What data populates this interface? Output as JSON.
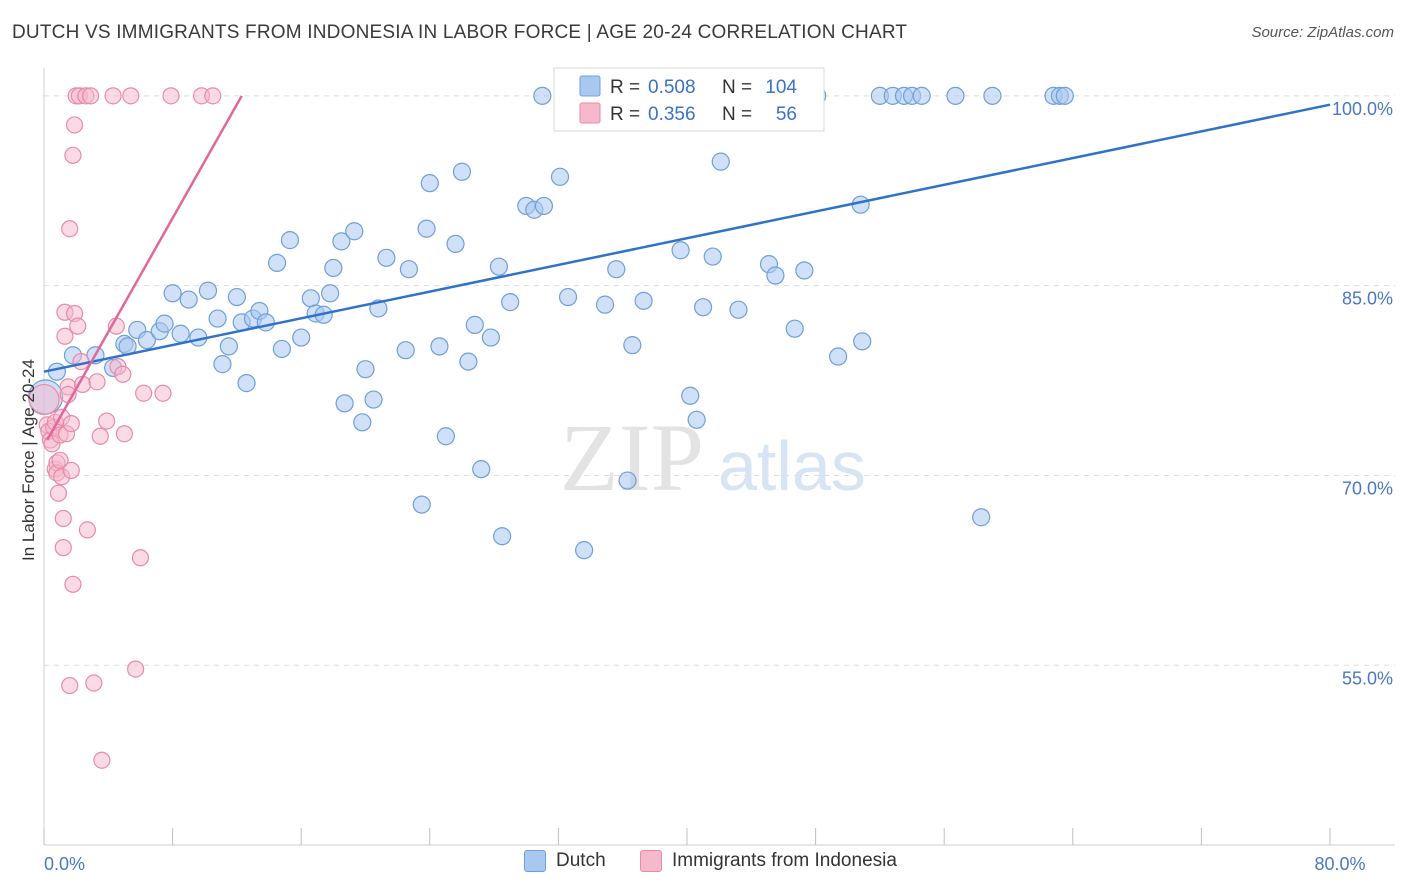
{
  "title": "DUTCH VS IMMIGRANTS FROM INDONESIA IN LABOR FORCE | AGE 20-24 CORRELATION CHART",
  "source": "Source: ZipAtlas.com",
  "watermark": {
    "zip": "ZIP",
    "atlas": "atlas"
  },
  "colors": {
    "dutch_fill": "#a9c8f0",
    "dutch_stroke": "#6f9fd8",
    "dutch_line": "#2f72cc",
    "indo_fill": "#f6b8cb",
    "indo_stroke": "#e98aa8",
    "indo_line": "#e0689a",
    "tick_text": "#4a78c0",
    "grid": "#dddddd"
  },
  "legend": {
    "rows": [
      {
        "r_label": "R =",
        "r_value": "0.508",
        "n_label": "N =",
        "n_value": "104"
      },
      {
        "r_label": "R =",
        "r_value": "0.356",
        "n_label": "N =",
        "n_value": "56"
      }
    ]
  },
  "bottom_legend": {
    "dutch": "Dutch",
    "indonesia": "Immigrants from Indonesia"
  },
  "chart_data": {
    "type": "scatter",
    "title": "DUTCH VS IMMIGRANTS FROM INDONESIA IN LABOR FORCE | AGE 20-24 CORRELATION CHART",
    "xlabel": "",
    "ylabel": "In Labor Force | Age 20-24",
    "xlim": [
      0,
      80
    ],
    "ylim": [
      40.8,
      102.2
    ],
    "x_tick_labels": [
      "0.0%",
      "80.0%"
    ],
    "y_ticks": [
      55,
      70,
      85,
      100
    ],
    "y_tick_labels": [
      "55.0%",
      "70.0%",
      "85.0%",
      "100.0%"
    ],
    "grid": true,
    "legend_position": "top-center",
    "series": [
      {
        "name": "Dutch",
        "r": 0.508,
        "n": 104,
        "trendline": [
          [
            0,
            78.2
          ],
          [
            80,
            99.3
          ]
        ],
        "points": [
          [
            0.1,
            76.2
          ],
          [
            0.8,
            78.2
          ],
          [
            1.8,
            79.5
          ],
          [
            3.2,
            79.5
          ],
          [
            4.3,
            78.5
          ],
          [
            5.0,
            80.4
          ],
          [
            5.2,
            80.2
          ],
          [
            5.8,
            81.5
          ],
          [
            6.4,
            80.7
          ],
          [
            7.2,
            81.4
          ],
          [
            7.5,
            82.0
          ],
          [
            8.0,
            84.4
          ],
          [
            8.5,
            81.2
          ],
          [
            9.0,
            83.9
          ],
          [
            9.6,
            80.9
          ],
          [
            10.2,
            84.6
          ],
          [
            10.8,
            82.4
          ],
          [
            11.1,
            78.8
          ],
          [
            11.5,
            80.2
          ],
          [
            12.0,
            84.1
          ],
          [
            12.3,
            82.1
          ],
          [
            12.6,
            77.3
          ],
          [
            13.0,
            82.4
          ],
          [
            13.4,
            83.0
          ],
          [
            13.8,
            82.1
          ],
          [
            14.5,
            86.8
          ],
          [
            14.8,
            80.0
          ],
          [
            15.3,
            88.6
          ],
          [
            16.0,
            80.9
          ],
          [
            16.6,
            84.0
          ],
          [
            16.9,
            82.8
          ],
          [
            17.4,
            82.7
          ],
          [
            17.8,
            84.4
          ],
          [
            18.0,
            86.4
          ],
          [
            18.5,
            88.5
          ],
          [
            18.7,
            75.7
          ],
          [
            19.3,
            89.3
          ],
          [
            19.8,
            74.2
          ],
          [
            20.0,
            78.4
          ],
          [
            20.5,
            76.0
          ],
          [
            20.8,
            83.2
          ],
          [
            21.3,
            87.2
          ],
          [
            22.5,
            79.9
          ],
          [
            22.7,
            86.3
          ],
          [
            23.5,
            67.7
          ],
          [
            23.8,
            89.5
          ],
          [
            24.0,
            93.1
          ],
          [
            24.6,
            80.2
          ],
          [
            25.0,
            73.1
          ],
          [
            25.6,
            88.3
          ],
          [
            26.0,
            94.0
          ],
          [
            26.4,
            79.0
          ],
          [
            26.8,
            81.9
          ],
          [
            27.2,
            70.5
          ],
          [
            27.8,
            80.9
          ],
          [
            28.3,
            86.5
          ],
          [
            28.5,
            65.2
          ],
          [
            29.0,
            83.7
          ],
          [
            30.0,
            91.3
          ],
          [
            30.5,
            91.0
          ],
          [
            31.1,
            91.3
          ],
          [
            32.1,
            93.6
          ],
          [
            32.6,
            84.1
          ],
          [
            33.6,
            64.1
          ],
          [
            34.9,
            83.5
          ],
          [
            35.6,
            86.3
          ],
          [
            36.3,
            69.6
          ],
          [
            36.6,
            80.3
          ],
          [
            37.3,
            83.8
          ],
          [
            39.6,
            87.8
          ],
          [
            40.2,
            76.3
          ],
          [
            40.6,
            74.4
          ],
          [
            41.0,
            83.3
          ],
          [
            41.6,
            87.3
          ],
          [
            42.1,
            94.8
          ],
          [
            43.2,
            83.1
          ],
          [
            45.1,
            86.7
          ],
          [
            45.5,
            85.8
          ],
          [
            46.7,
            81.6
          ],
          [
            47.3,
            86.2
          ],
          [
            49.4,
            79.4
          ],
          [
            50.8,
            91.4
          ],
          [
            50.9,
            80.6
          ],
          [
            58.3,
            66.7
          ],
          [
            31.0,
            100.0
          ],
          [
            33.6,
            100.0
          ],
          [
            35.6,
            100.0
          ],
          [
            38.6,
            100.0
          ],
          [
            42.1,
            100.0
          ],
          [
            44.1,
            100.0
          ],
          [
            45.5,
            100.0
          ],
          [
            47.1,
            100.0
          ],
          [
            48.1,
            100.0
          ],
          [
            52.0,
            100.0
          ],
          [
            52.8,
            100.0
          ],
          [
            53.5,
            100.0
          ],
          [
            54.0,
            100.0
          ],
          [
            54.6,
            100.0
          ],
          [
            56.7,
            100.0
          ],
          [
            59.0,
            100.0
          ],
          [
            62.8,
            100.0
          ],
          [
            63.2,
            100.0
          ],
          [
            63.5,
            100.0
          ],
          [
            43.2,
            100.0
          ]
        ]
      },
      {
        "name": "Immigrants from Indonesia",
        "r": 0.356,
        "n": 56,
        "trendline": [
          [
            0.2,
            72.8
          ],
          [
            12.3,
            100.0
          ]
        ],
        "points": [
          [
            0.0,
            76.0
          ],
          [
            0.2,
            74.0
          ],
          [
            0.3,
            73.5
          ],
          [
            0.4,
            72.8
          ],
          [
            0.5,
            72.5
          ],
          [
            0.6,
            73.8
          ],
          [
            0.7,
            74.2
          ],
          [
            0.7,
            70.5
          ],
          [
            0.8,
            71.0
          ],
          [
            0.8,
            70.2
          ],
          [
            0.9,
            68.6
          ],
          [
            1.0,
            73.2
          ],
          [
            1.0,
            71.2
          ],
          [
            1.1,
            69.9
          ],
          [
            1.1,
            74.6
          ],
          [
            1.2,
            66.6
          ],
          [
            1.2,
            64.3
          ],
          [
            1.3,
            81.0
          ],
          [
            1.3,
            82.9
          ],
          [
            1.4,
            73.3
          ],
          [
            1.5,
            77.0
          ],
          [
            1.5,
            76.4
          ],
          [
            1.6,
            89.5
          ],
          [
            1.6,
            53.4
          ],
          [
            1.7,
            74.1
          ],
          [
            1.7,
            70.4
          ],
          [
            1.8,
            95.3
          ],
          [
            1.8,
            61.4
          ],
          [
            1.9,
            97.7
          ],
          [
            1.9,
            82.8
          ],
          [
            2.0,
            100.0
          ],
          [
            2.1,
            81.8
          ],
          [
            2.2,
            100.0
          ],
          [
            2.3,
            79.0
          ],
          [
            2.4,
            77.2
          ],
          [
            2.6,
            100.0
          ],
          [
            2.7,
            65.7
          ],
          [
            2.9,
            100.0
          ],
          [
            3.1,
            53.6
          ],
          [
            3.3,
            77.4
          ],
          [
            3.5,
            73.1
          ],
          [
            3.6,
            47.5
          ],
          [
            3.9,
            74.3
          ],
          [
            4.3,
            100.0
          ],
          [
            4.5,
            81.8
          ],
          [
            4.6,
            78.6
          ],
          [
            4.9,
            78.0
          ],
          [
            5.0,
            73.3
          ],
          [
            5.4,
            100.0
          ],
          [
            5.7,
            54.7
          ],
          [
            6.0,
            63.5
          ],
          [
            6.2,
            76.5
          ],
          [
            7.4,
            76.5
          ],
          [
            7.9,
            100.0
          ],
          [
            9.8,
            100.0
          ],
          [
            10.5,
            100.0
          ]
        ]
      }
    ]
  }
}
